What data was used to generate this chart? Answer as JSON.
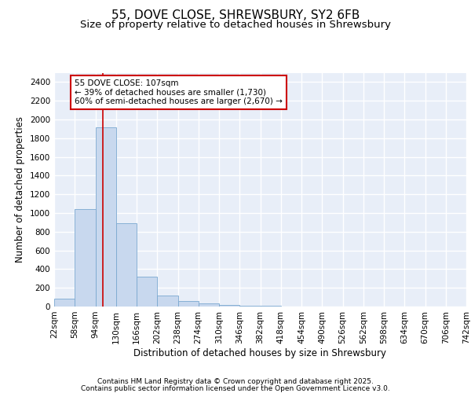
{
  "title": "55, DOVE CLOSE, SHREWSBURY, SY2 6FB",
  "subtitle": "Size of property relative to detached houses in Shrewsbury",
  "xlabel": "Distribution of detached houses by size in Shrewsbury",
  "ylabel": "Number of detached properties",
  "bin_edges": [
    22,
    58,
    94,
    130,
    166,
    202,
    238,
    274,
    310,
    346,
    382,
    418,
    454,
    490,
    526,
    562,
    598,
    634,
    670,
    706,
    742
  ],
  "bar_heights": [
    80,
    1040,
    1920,
    890,
    320,
    115,
    55,
    35,
    20,
    10,
    5,
    3,
    2,
    1,
    1,
    1,
    0,
    0,
    0,
    0
  ],
  "bar_color": "#c8d8ee",
  "bar_edge_color": "#7aa8d0",
  "bar_edge_width": 0.6,
  "vline_x": 107,
  "vline_color": "#cc0000",
  "annotation_text": "55 DOVE CLOSE: 107sqm\n← 39% of detached houses are smaller (1,730)\n60% of semi-detached houses are larger (2,670) →",
  "annotation_box_color": "#ffffff",
  "annotation_box_edge_color": "#cc0000",
  "ylim": [
    0,
    2500
  ],
  "yticks": [
    0,
    200,
    400,
    600,
    800,
    1000,
    1200,
    1400,
    1600,
    1800,
    2000,
    2200,
    2400
  ],
  "background_color": "#ffffff",
  "plot_bg_color": "#e8eef8",
  "footer_line1": "Contains HM Land Registry data © Crown copyright and database right 2025.",
  "footer_line2": "Contains public sector information licensed under the Open Government Licence v3.0.",
  "title_fontsize": 11,
  "subtitle_fontsize": 9.5,
  "axis_label_fontsize": 8.5,
  "tick_fontsize": 7.5,
  "annotation_fontsize": 7.5,
  "footer_fontsize": 6.5,
  "grid_color": "#ffffff",
  "grid_linewidth": 1.0
}
